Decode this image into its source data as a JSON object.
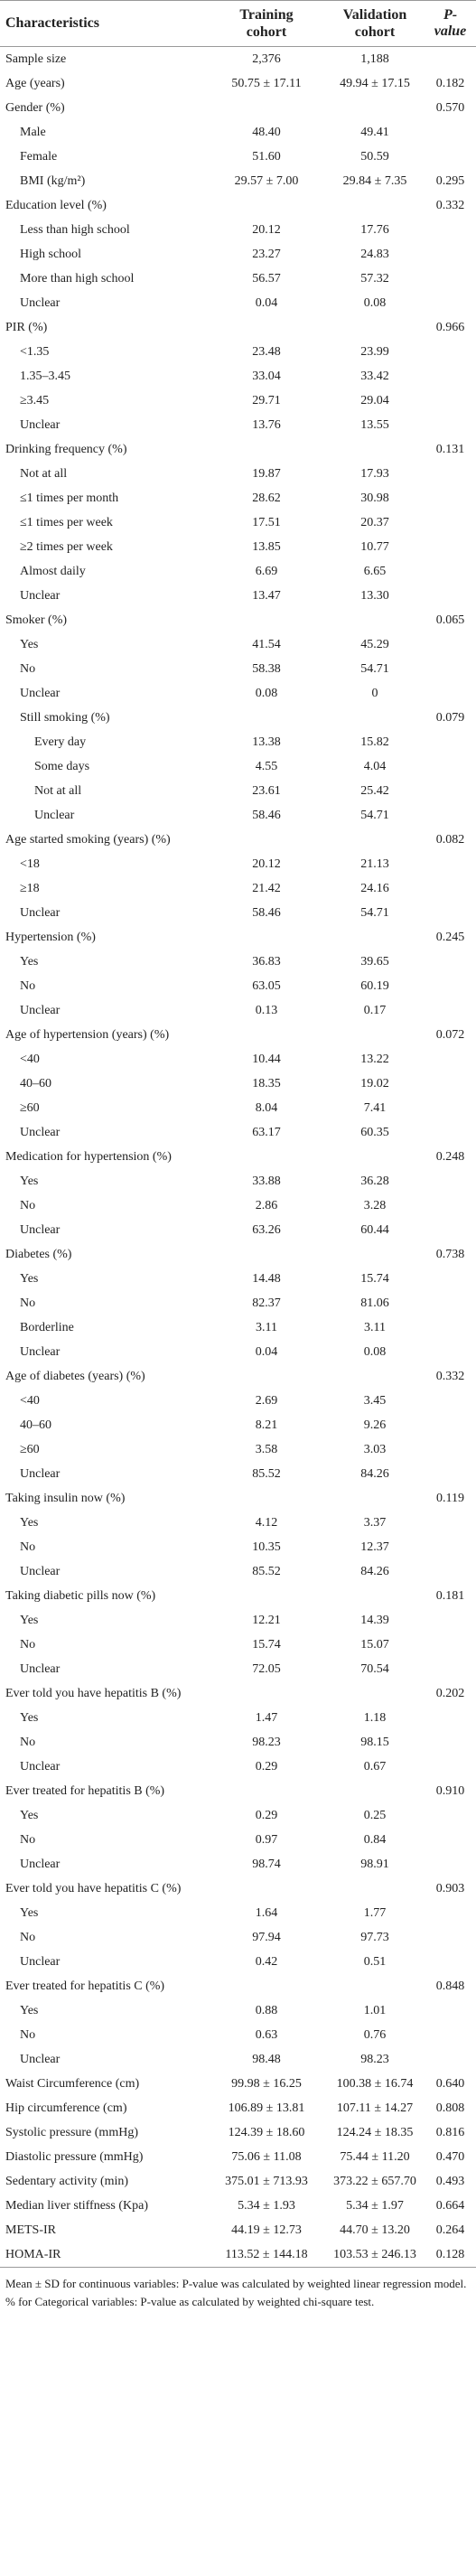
{
  "table": {
    "columns": [
      "Characteristics",
      "Training cohort",
      "Validation cohort",
      "P-value"
    ],
    "rows": [
      {
        "label": "Sample size",
        "training": "2,376",
        "validation": "1,188"
      },
      {
        "label": "Age (years)",
        "training": "50.75 ± 17.11",
        "validation": "49.94 ± 17.15",
        "p_value": "0.182"
      },
      {
        "label": "Gender (%)",
        "p_value": "0.570",
        "items": [
          {
            "label": "Male",
            "training": "48.40",
            "validation": "49.41"
          },
          {
            "label": "Female",
            "training": "51.60",
            "validation": "50.59"
          },
          {
            "label": "BMI (kg/m²)",
            "training": "29.57 ± 7.00",
            "validation": "29.84 ± 7.35",
            "p_value": "0.295"
          }
        ]
      },
      {
        "label": "Education level (%)",
        "p_value": "0.332",
        "items": [
          {
            "label": "Less than high school",
            "training": "20.12",
            "validation": "17.76"
          },
          {
            "label": "High school",
            "training": "23.27",
            "validation": "24.83"
          },
          {
            "label": "More than high school",
            "training": "56.57",
            "validation": "57.32"
          },
          {
            "label": "Unclear",
            "training": "0.04",
            "validation": "0.08"
          }
        ]
      },
      {
        "label": "PIR (%)",
        "p_value": "0.966",
        "items": [
          {
            "label": "<1.35",
            "training": "23.48",
            "validation": "23.99"
          },
          {
            "label": "1.35–3.45",
            "training": "33.04",
            "validation": "33.42"
          },
          {
            "label": "≥3.45",
            "training": "29.71",
            "validation": "29.04"
          },
          {
            "label": "Unclear",
            "training": "13.76",
            "validation": "13.55"
          }
        ]
      },
      {
        "label": "Drinking frequency (%)",
        "p_value": "0.131",
        "items": [
          {
            "label": "Not at all",
            "training": "19.87",
            "validation": "17.93"
          },
          {
            "label": "≤1 times per month",
            "training": "28.62",
            "validation": "30.98"
          },
          {
            "label": "≤1 times per week",
            "training": "17.51",
            "validation": "20.37"
          },
          {
            "label": "≥2 times per week",
            "training": "13.85",
            "validation": "10.77"
          },
          {
            "label": "Almost daily",
            "training": "6.69",
            "validation": "6.65"
          },
          {
            "label": "Unclear",
            "training": "13.47",
            "validation": "13.30"
          }
        ]
      },
      {
        "label": "Smoker (%)",
        "p_value": "0.065",
        "items": [
          {
            "label": "Yes",
            "training": "41.54",
            "validation": "45.29"
          },
          {
            "label": "No",
            "training": "58.38",
            "validation": "54.71"
          },
          {
            "label": "Unclear",
            "training": "0.08",
            "validation": "0"
          },
          {
            "label": "Still smoking (%)",
            "p_value": "0.079",
            "items": [
              {
                "label": "Every day",
                "training": "13.38",
                "validation": "15.82"
              },
              {
                "label": "Some days",
                "training": "4.55",
                "validation": "4.04"
              },
              {
                "label": "Not at all",
                "training": "23.61",
                "validation": "25.42"
              },
              {
                "label": "Unclear",
                "training": "58.46",
                "validation": "54.71"
              }
            ]
          }
        ]
      },
      {
        "label": "Age started smoking (years) (%)",
        "p_value": "0.082",
        "items": [
          {
            "label": "<18",
            "training": "20.12",
            "validation": "21.13"
          },
          {
            "label": "≥18",
            "training": "21.42",
            "validation": "24.16"
          },
          {
            "label": "Unclear",
            "training": "58.46",
            "validation": "54.71"
          }
        ]
      },
      {
        "label": "Hypertension (%)",
        "p_value": "0.245",
        "items": [
          {
            "label": "Yes",
            "training": "36.83",
            "validation": "39.65"
          },
          {
            "label": "No",
            "training": "63.05",
            "validation": "60.19"
          },
          {
            "label": "Unclear",
            "training": "0.13",
            "validation": "0.17"
          }
        ]
      },
      {
        "label": "Age of hypertension (years) (%)",
        "p_value": "0.072",
        "items": [
          {
            "label": "<40",
            "training": "10.44",
            "validation": "13.22"
          },
          {
            "label": "40–60",
            "training": "18.35",
            "validation": "19.02"
          },
          {
            "label": "≥60",
            "training": "8.04",
            "validation": "7.41"
          },
          {
            "label": "Unclear",
            "training": "63.17",
            "validation": "60.35"
          }
        ]
      },
      {
        "label": "Medication for hypertension (%)",
        "p_value": "0.248",
        "items": [
          {
            "label": "Yes",
            "training": "33.88",
            "validation": "36.28"
          },
          {
            "label": "No",
            "training": "2.86",
            "validation": "3.28"
          },
          {
            "label": "Unclear",
            "training": "63.26",
            "validation": "60.44"
          }
        ]
      },
      {
        "label": "Diabetes (%)",
        "p_value": "0.738",
        "items": [
          {
            "label": "Yes",
            "training": "14.48",
            "validation": "15.74"
          },
          {
            "label": "No",
            "training": "82.37",
            "validation": "81.06"
          },
          {
            "label": "Borderline",
            "training": "3.11",
            "validation": "3.11"
          },
          {
            "label": "Unclear",
            "training": "0.04",
            "validation": "0.08"
          }
        ]
      },
      {
        "label": "Age of diabetes (years) (%)",
        "p_value": "0.332",
        "items": [
          {
            "label": "<40",
            "training": "2.69",
            "validation": "3.45"
          },
          {
            "label": "40–60",
            "training": "8.21",
            "validation": "9.26"
          },
          {
            "label": "≥60",
            "training": "3.58",
            "validation": "3.03"
          },
          {
            "label": "Unclear",
            "training": "85.52",
            "validation": "84.26"
          }
        ]
      },
      {
        "label": "Taking insulin now (%)",
        "p_value": "0.119",
        "items": [
          {
            "label": "Yes",
            "training": "4.12",
            "validation": "3.37"
          },
          {
            "label": "No",
            "training": "10.35",
            "validation": "12.37"
          },
          {
            "label": "Unclear",
            "training": "85.52",
            "validation": "84.26"
          }
        ]
      },
      {
        "label": "Taking diabetic pills now (%)",
        "p_value": "0.181",
        "items": [
          {
            "label": "Yes",
            "training": "12.21",
            "validation": "14.39"
          },
          {
            "label": "No",
            "training": "15.74",
            "validation": "15.07"
          },
          {
            "label": "Unclear",
            "training": "72.05",
            "validation": "70.54"
          }
        ]
      },
      {
        "label": "Ever told you have hepatitis B (%)",
        "p_value": "0.202",
        "items": [
          {
            "label": "Yes",
            "training": "1.47",
            "validation": "1.18"
          },
          {
            "label": "No",
            "training": "98.23",
            "validation": "98.15"
          },
          {
            "label": "Unclear",
            "training": "0.29",
            "validation": "0.67"
          }
        ]
      },
      {
        "label": "Ever treated for hepatitis B (%)",
        "p_value": "0.910",
        "items": [
          {
            "label": "Yes",
            "training": "0.29",
            "validation": "0.25"
          },
          {
            "label": "No",
            "training": "0.97",
            "validation": "0.84"
          },
          {
            "label": "Unclear",
            "training": "98.74",
            "validation": "98.91"
          }
        ]
      },
      {
        "label": "Ever told you have hepatitis C (%)",
        "p_value": "0.903",
        "items": [
          {
            "label": "Yes",
            "training": "1.64",
            "validation": "1.77"
          },
          {
            "label": "No",
            "training": "97.94",
            "validation": "97.73"
          },
          {
            "label": "Unclear",
            "training": "0.42",
            "validation": "0.51"
          }
        ]
      },
      {
        "label": "Ever treated for hepatitis C (%)",
        "p_value": "0.848",
        "items": [
          {
            "label": "Yes",
            "training": "0.88",
            "validation": "1.01"
          },
          {
            "label": "No",
            "training": "0.63",
            "validation": "0.76"
          },
          {
            "label": "Unclear",
            "training": "98.48",
            "validation": "98.23"
          }
        ]
      },
      {
        "label": "Waist Circumference (cm)",
        "training": "99.98 ± 16.25",
        "validation": "100.38 ± 16.74",
        "p_value": "0.640"
      },
      {
        "label": "Hip circumference (cm)",
        "training": "106.89 ± 13.81",
        "validation": "107.11 ± 14.27",
        "p_value": "0.808"
      },
      {
        "label": "Systolic pressure (mmHg)",
        "training": "124.39 ± 18.60",
        "validation": "124.24 ± 18.35",
        "p_value": "0.816"
      },
      {
        "label": "Diastolic pressure (mmHg)",
        "training": "75.06 ± 11.08",
        "validation": "75.44 ± 11.20",
        "p_value": "0.470"
      },
      {
        "label": "Sedentary activity (min)",
        "training": "375.01 ± 713.93",
        "validation": "373.22 ± 657.70",
        "p_value": "0.493"
      },
      {
        "label": "Median liver stiffness (Kpa)",
        "training": "5.34 ± 1.93",
        "validation": "5.34 ± 1.97",
        "p_value": "0.664"
      },
      {
        "label": "METS-IR",
        "training": "44.19 ± 12.73",
        "validation": "44.70 ± 13.20",
        "p_value": "0.264"
      },
      {
        "label": "HOMA-IR",
        "training": "113.52 ± 144.18",
        "validation": "103.53 ± 246.13",
        "p_value": "0.128"
      }
    ]
  },
  "footnote": "Mean ± SD for continuous variables: P-value was calculated by weighted linear regression model. % for Categorical variables: P-value as calculated by weighted chi-square test."
}
